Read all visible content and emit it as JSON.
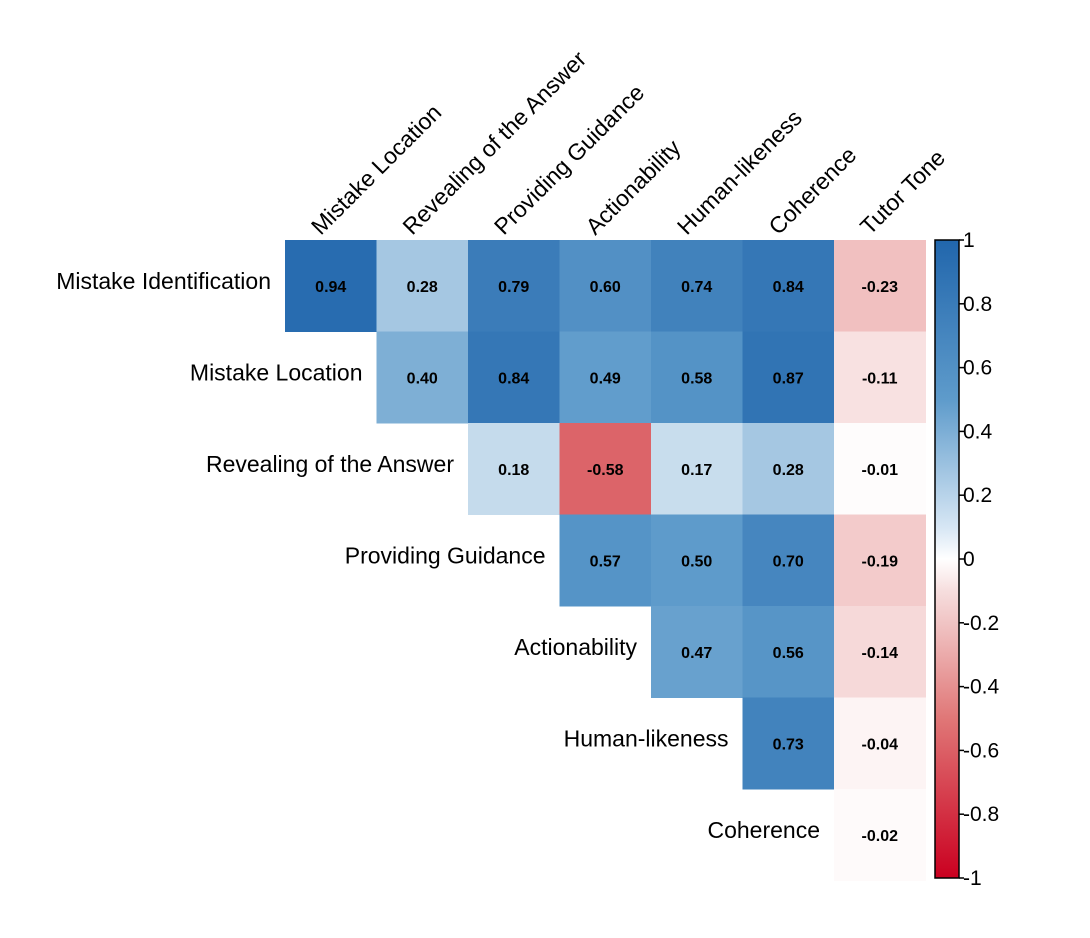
{
  "chart_data": {
    "type": "heatmap",
    "title": "",
    "layout": "upper-triangle",
    "row_labels": [
      "Mistake Identification",
      "Mistake Location",
      "Revealing of the Answer",
      "Providing Guidance",
      "Actionability",
      "Human-likeness",
      "Coherence"
    ],
    "col_labels": [
      "Mistake Location",
      "Revealing of the Answer",
      "Providing Guidance",
      "Actionability",
      "Human-likeness",
      "Coherence",
      "Tutor Tone"
    ],
    "values": [
      [
        0.94,
        0.28,
        0.79,
        0.6,
        0.74,
        0.84,
        -0.23
      ],
      [
        null,
        0.4,
        0.84,
        0.49,
        0.58,
        0.87,
        -0.11
      ],
      [
        null,
        null,
        0.18,
        -0.58,
        0.17,
        0.28,
        -0.01
      ],
      [
        null,
        null,
        null,
        0.57,
        0.5,
        0.7,
        -0.19
      ],
      [
        null,
        null,
        null,
        null,
        0.47,
        0.56,
        -0.14
      ],
      [
        null,
        null,
        null,
        null,
        null,
        0.73,
        -0.04
      ],
      [
        null,
        null,
        null,
        null,
        null,
        null,
        -0.02
      ]
    ],
    "value_labels": [
      [
        "0.94",
        "0.28",
        "0.79",
        "0.60",
        "0.74",
        "0.84",
        "-0.23"
      ],
      [
        null,
        "0.40",
        "0.84",
        "0.49",
        "0.58",
        "0.87",
        "-0.11"
      ],
      [
        null,
        null,
        "0.18",
        "-0.58",
        "0.17",
        "0.28",
        "-0.01"
      ],
      [
        null,
        null,
        null,
        "0.57",
        "0.50",
        "0.70",
        "-0.19"
      ],
      [
        null,
        null,
        null,
        null,
        "0.47",
        "0.56",
        "-0.14"
      ],
      [
        null,
        null,
        null,
        null,
        null,
        "0.73",
        "-0.04"
      ],
      [
        null,
        null,
        null,
        null,
        null,
        null,
        "-0.02"
      ]
    ],
    "colorbar": {
      "range": [
        -1,
        1
      ],
      "ticks": [
        "1",
        "0.8",
        "0.6",
        "0.4",
        "0.2",
        "0",
        "-0.2",
        "-0.4",
        "-0.6",
        "-0.8",
        "-1"
      ],
      "colors": {
        "negative": "#ca0020",
        "neutral": "#ffffff",
        "positive": "#2166ac"
      }
    },
    "legend_placement": "right",
    "grid": false
  }
}
